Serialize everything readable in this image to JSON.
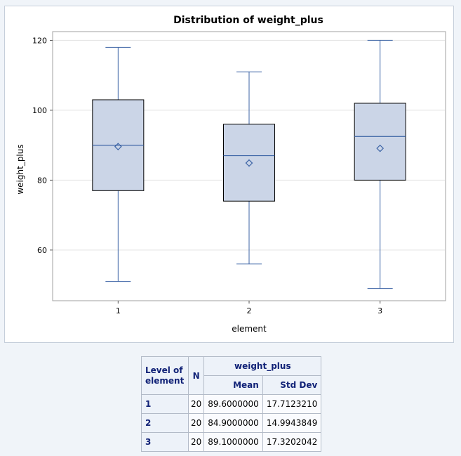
{
  "chart_data": {
    "type": "box",
    "title": "Distribution of weight_plus",
    "xlabel": "element",
    "ylabel": "weight_plus",
    "ylim": [
      45.5,
      122.5
    ],
    "yticks": [
      60,
      80,
      100,
      120
    ],
    "grid": true,
    "categories": [
      "1",
      "2",
      "3"
    ],
    "boxes": [
      {
        "category": "1",
        "min": 51,
        "q1": 77,
        "median": 90,
        "q3": 103,
        "max": 118,
        "mean": 89.6
      },
      {
        "category": "2",
        "min": 56,
        "q1": 74,
        "median": 87,
        "q3": 96,
        "max": 111,
        "mean": 84.9
      },
      {
        "category": "3",
        "min": 49,
        "q1": 80,
        "median": 92.5,
        "q3": 102,
        "max": 120,
        "mean": 89.1
      }
    ],
    "colors": {
      "box_fill": "#cbd5e7",
      "box_edge": "#000000",
      "whisker": "#3b63a5",
      "mean_marker": "#3b63a5"
    }
  },
  "table": {
    "row_header_label": "Level of element",
    "n_label": "N",
    "group_label": "weight_plus",
    "mean_label": "Mean",
    "std_label": "Std Dev",
    "rows": [
      {
        "level": "1",
        "n": "20",
        "mean": "89.6000000",
        "std": "17.7123210"
      },
      {
        "level": "2",
        "n": "20",
        "mean": "84.9000000",
        "std": "14.9943849"
      },
      {
        "level": "3",
        "n": "20",
        "mean": "89.1000000",
        "std": "17.3202042"
      }
    ]
  }
}
